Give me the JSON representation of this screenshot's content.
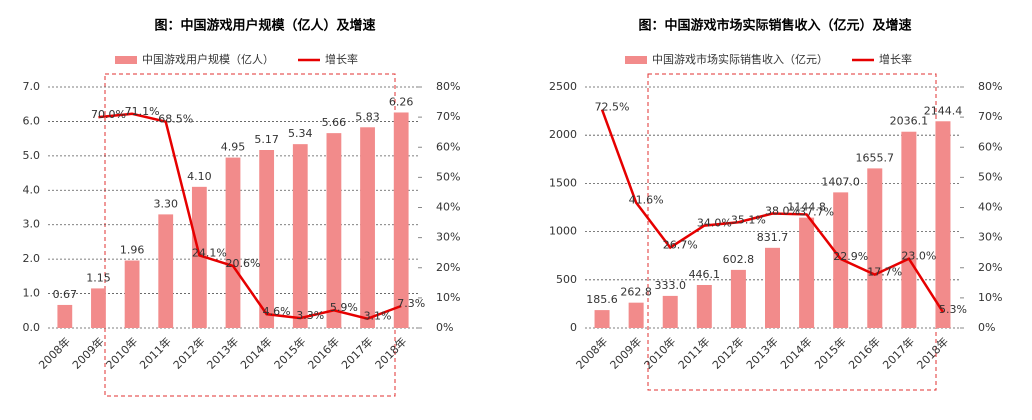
{
  "chart_data": [
    {
      "type": "bar",
      "title": "图：中国游戏用户规模（亿人）及增速",
      "categories": [
        "2008年",
        "2009年",
        "2010年",
        "2011年",
        "2012年",
        "2013年",
        "2014年",
        "2015年",
        "2016年",
        "2017年",
        "2018年"
      ],
      "series": [
        {
          "name": "中国游戏用户规模（亿人）",
          "type": "bar",
          "color": "#f28b8b",
          "values": [
            0.67,
            1.15,
            1.96,
            3.3,
            4.1,
            4.95,
            5.17,
            5.34,
            5.66,
            5.83,
            6.26
          ],
          "value_labels": [
            "0.67",
            "1.15",
            "1.96",
            "3.30",
            "4.10",
            "4.95",
            "5.17",
            "5.34",
            "5.66",
            "5.83",
            "6.26"
          ]
        },
        {
          "name": "增长率",
          "type": "line",
          "axis": "y2",
          "color": "#e60000",
          "values": [
            null,
            70.0,
            71.1,
            68.5,
            24.1,
            20.6,
            4.6,
            3.3,
            5.9,
            3.1,
            7.3
          ],
          "value_labels": [
            null,
            "70.0%",
            "71.1%",
            "68.5%",
            "24.1%",
            "20.6%",
            "4.6%",
            "3.3%",
            "5.9%",
            "3.1%",
            "7.3%"
          ]
        }
      ],
      "ylim": [
        0,
        7
      ],
      "yticks": [
        {
          "value": 0,
          "label": "0.0"
        },
        {
          "value": 1,
          "label": "1.0"
        },
        {
          "value": 2,
          "label": "2.0"
        },
        {
          "value": 3,
          "label": "3.0"
        },
        {
          "value": 4,
          "label": "4.0"
        },
        {
          "value": 5,
          "label": "5.0"
        },
        {
          "value": 6,
          "label": "6.0"
        },
        {
          "value": 7,
          "label": "7.0"
        }
      ],
      "y2lim": [
        0,
        80
      ],
      "y2ticks": [
        {
          "value": 0,
          "label": "0%"
        },
        {
          "value": 10,
          "label": "10%"
        },
        {
          "value": 20,
          "label": "20%"
        },
        {
          "value": 30,
          "label": "30%"
        },
        {
          "value": 40,
          "label": "40%"
        },
        {
          "value": 50,
          "label": "50%"
        },
        {
          "value": 60,
          "label": "60%"
        },
        {
          "value": 70,
          "label": "70%"
        },
        {
          "value": 80,
          "label": "80%"
        }
      ],
      "grid": true
    },
    {
      "type": "bar",
      "title": "图：中国游戏市场实际销售收入（亿元）及增速",
      "categories": [
        "2008年",
        "2009年",
        "2010年",
        "2011年",
        "2012年",
        "2013年",
        "2014年",
        "2015年",
        "2016年",
        "2017年",
        "2018年"
      ],
      "series": [
        {
          "name": "中国游戏市场实际销售收入（亿元）",
          "type": "bar",
          "color": "#f28b8b",
          "values": [
            185.6,
            262.8,
            333.0,
            446.1,
            602.8,
            831.7,
            1144.8,
            1407.0,
            1655.7,
            2036.1,
            2144.4
          ],
          "value_labels": [
            "185.6",
            "262.8",
            "333.0",
            "446.1",
            "602.8",
            "831.7",
            "1144.8",
            "1407.0",
            "1655.7",
            "2036.1",
            "2144.4"
          ]
        },
        {
          "name": "增长率",
          "type": "line",
          "axis": "y2",
          "color": "#e60000",
          "values": [
            72.5,
            41.6,
            26.7,
            34.0,
            35.1,
            38.0,
            37.7,
            22.9,
            17.7,
            23.0,
            5.3
          ],
          "value_labels": [
            "72.5%",
            "41.6%",
            "26.7%",
            "34.0%",
            "35.1%",
            "38.0%",
            "37.7%",
            "22.9%",
            "17.7%",
            "23.0%",
            "5.3%"
          ]
        }
      ],
      "ylim": [
        0,
        2500
      ],
      "yticks": [
        0,
        500,
        1000,
        1500,
        2000,
        2500
      ],
      "y2lim": [
        0,
        80
      ],
      "y2ticks": [
        {
          "value": 0,
          "label": "0%"
        },
        {
          "value": 10,
          "label": "10%"
        },
        {
          "value": 20,
          "label": "20%"
        },
        {
          "value": 30,
          "label": "30%"
        },
        {
          "value": 40,
          "label": "40%"
        },
        {
          "value": 50,
          "label": "50%"
        },
        {
          "value": 60,
          "label": "60%"
        },
        {
          "value": 70,
          "label": "70%"
        },
        {
          "value": 80,
          "label": "80%"
        }
      ],
      "grid": true
    }
  ]
}
